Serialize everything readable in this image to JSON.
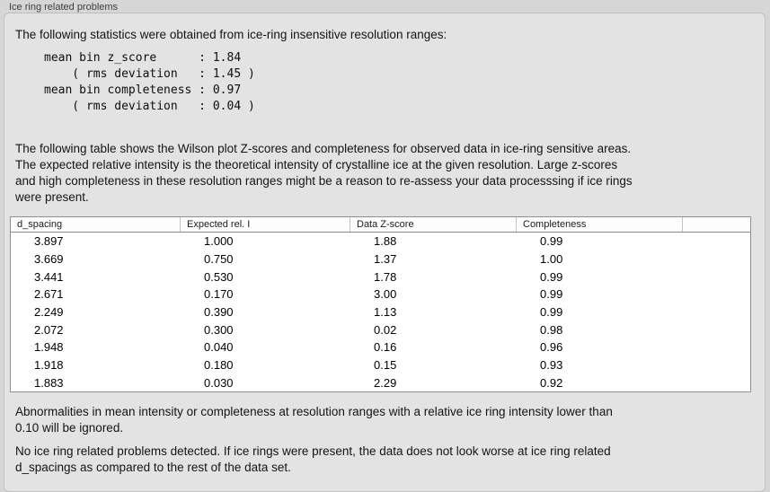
{
  "colors": {
    "window_bg": "#d6d6d6",
    "panel_bg": "#e3e3e3",
    "panel_border": "#c4c4c4",
    "table_bg": "#ffffff",
    "table_border": "#909090",
    "header_divider": "#c4c4c4",
    "text": "#141414"
  },
  "group_label": "Ice ring related problems",
  "intro": "The following statistics were obtained from ice-ring insensitive resolution ranges:",
  "stats_block": "mean bin z_score      : 1.84\n    ( rms deviation   : 1.45 )\nmean bin completeness : 0.97\n    ( rms deviation   : 0.04 )",
  "stats": {
    "mean_bin_z_score": "1.84",
    "z_score_rms_deviation": "1.45",
    "mean_bin_completeness": "0.97",
    "completeness_rms_deviation": "0.04"
  },
  "description": "The following table shows the Wilson plot Z-scores and completeness for observed data in ice-ring sensitive areas.\nThe expected relative intensity is the theoretical intensity of crystalline ice at the given resolution. Large z-scores\nand high completeness in these resolution ranges might be a reason to re-assess your data processsing if ice rings\nwere present.",
  "table": {
    "columns": [
      "d_spacing",
      "Expected rel. I",
      "Data Z-score",
      "Completeness",
      ""
    ],
    "rows": [
      [
        "3.897",
        "1.000",
        "1.88",
        "0.99"
      ],
      [
        "3.669",
        "0.750",
        "1.37",
        "1.00"
      ],
      [
        "3.441",
        "0.530",
        "1.78",
        "0.99"
      ],
      [
        "2.671",
        "0.170",
        "3.00",
        "0.99"
      ],
      [
        "2.249",
        "0.390",
        "1.13",
        "0.99"
      ],
      [
        "2.072",
        "0.300",
        "0.02",
        "0.98"
      ],
      [
        "1.948",
        "0.040",
        "0.16",
        "0.96"
      ],
      [
        "1.918",
        "0.180",
        "0.15",
        "0.93"
      ],
      [
        "1.883",
        "0.030",
        "2.29",
        "0.92"
      ]
    ]
  },
  "note_ignore": "Abnormalities in mean intensity or completeness at resolution ranges with a relative ice ring intensity lower than\n0.10 will be ignored.",
  "conclusion": "No ice ring related problems detected. If ice rings were present, the data does not look worse at ice ring related\nd_spacings as compared to the rest of the data set."
}
